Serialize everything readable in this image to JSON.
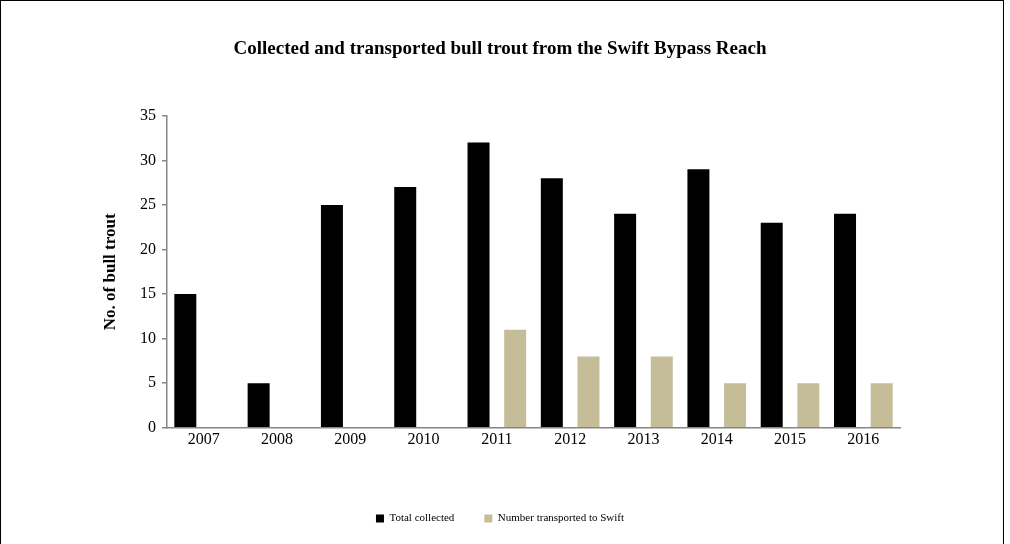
{
  "chart_data": {
    "type": "bar",
    "title": "Collected and transported bull trout from the Swift Bypass Reach",
    "ylabel": "No. of bull trout",
    "categories": [
      "2007",
      "2008",
      "2009",
      "2010",
      "2011",
      "2012",
      "2013",
      "2014",
      "2015",
      "2016"
    ],
    "series": [
      {
        "name": "Total collected",
        "color": "#000000",
        "values": [
          15,
          5,
          25,
          27,
          32,
          28,
          24,
          29,
          23,
          24
        ]
      },
      {
        "name": "Number transported to Swift",
        "color": "#c4bd97",
        "values": [
          null,
          null,
          null,
          null,
          11,
          8,
          8,
          5,
          5,
          5
        ]
      }
    ],
    "ylim": [
      0,
      35
    ],
    "yticks": [
      0,
      5,
      10,
      15,
      20,
      25,
      30,
      35
    ],
    "grid": false,
    "legend": "bottom"
  }
}
